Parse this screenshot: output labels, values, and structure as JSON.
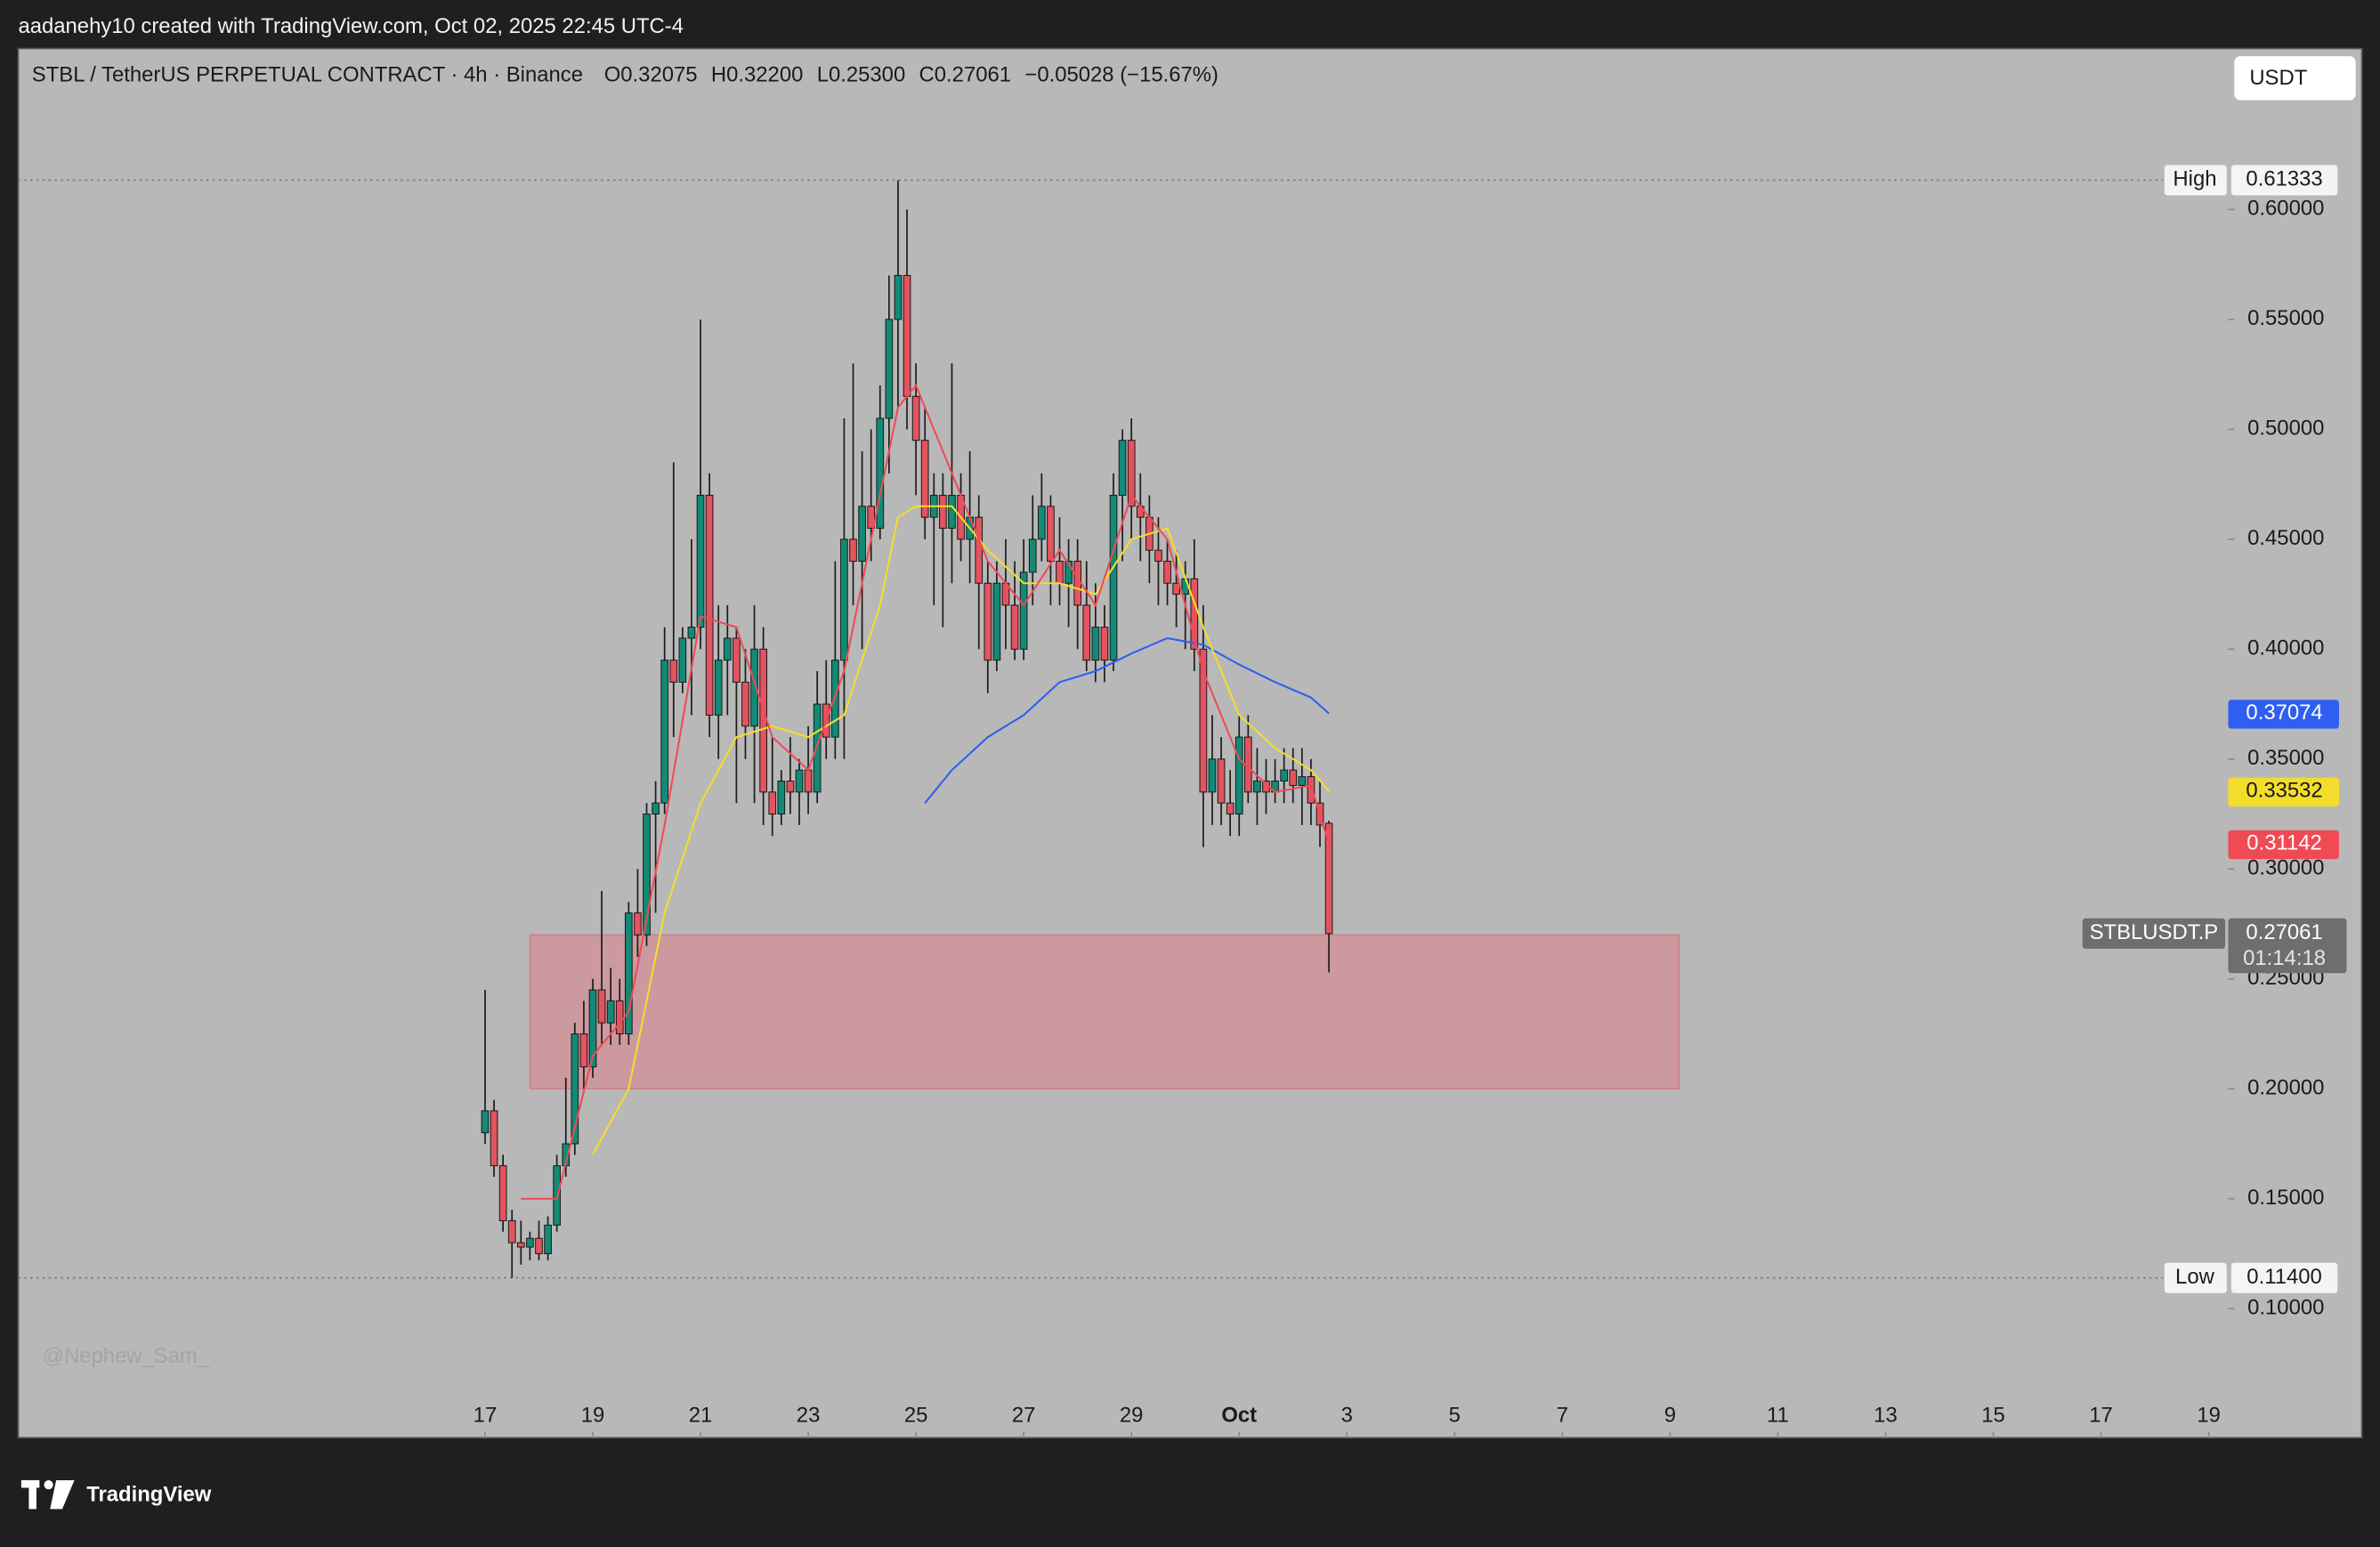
{
  "header": {
    "credit": "aadanehy10 created with TradingView.com, Oct 02, 2025 22:45 UTC-4",
    "currency_button": "USDT",
    "watermark": "@Nephew_Sam_",
    "brand": "TradingView"
  },
  "chart_data": {
    "type": "candlestick",
    "title": "STBL / TetherUS PERPETUAL CONTRACT · 4h · Binance",
    "ohlc_legend": [
      "O0.32075",
      "H0.32200",
      "L0.25300",
      "C0.27061",
      "−0.05028 (−15.67%)"
    ],
    "up_color": "#128a76",
    "down_color": "#e4535f",
    "wick_color": "#1c1c1c",
    "open": [
      0.18,
      0.19,
      0.165,
      0.14,
      0.13,
      0.128,
      0.132,
      0.125,
      0.138,
      0.165,
      0.175,
      0.225,
      0.21,
      0.245,
      0.23,
      0.24,
      0.225,
      0.28,
      0.27,
      0.325,
      0.33,
      0.395,
      0.385,
      0.405,
      0.41,
      0.47,
      0.37,
      0.395,
      0.405,
      0.385,
      0.365,
      0.4,
      0.335,
      0.325,
      0.34,
      0.335,
      0.345,
      0.335,
      0.375,
      0.36,
      0.395,
      0.45,
      0.44,
      0.465,
      0.455,
      0.505,
      0.55,
      0.57,
      0.515,
      0.495,
      0.46,
      0.47,
      0.455,
      0.47,
      0.45,
      0.46,
      0.43,
      0.395,
      0.43,
      0.42,
      0.4,
      0.435,
      0.45,
      0.465,
      0.44,
      0.43,
      0.44,
      0.42,
      0.395,
      0.41,
      0.395,
      0.47,
      0.495,
      0.465,
      0.46,
      0.445,
      0.44,
      0.43,
      0.425,
      0.432,
      0.4,
      0.335,
      0.35,
      0.33,
      0.325,
      0.36,
      0.335,
      0.34,
      0.335,
      0.34,
      0.345,
      0.338,
      0.342,
      0.33,
      0.32075
    ],
    "high": [
      0.245,
      0.195,
      0.17,
      0.145,
      0.14,
      0.135,
      0.14,
      0.142,
      0.17,
      0.205,
      0.23,
      0.24,
      0.25,
      0.29,
      0.255,
      0.25,
      0.285,
      0.3,
      0.33,
      0.34,
      0.41,
      0.485,
      0.41,
      0.45,
      0.55,
      0.48,
      0.42,
      0.42,
      0.41,
      0.4,
      0.42,
      0.41,
      0.36,
      0.345,
      0.36,
      0.35,
      0.365,
      0.39,
      0.395,
      0.44,
      0.505,
      0.53,
      0.49,
      0.5,
      0.52,
      0.57,
      0.61333,
      0.6,
      0.53,
      0.51,
      0.48,
      0.48,
      0.53,
      0.48,
      0.49,
      0.47,
      0.44,
      0.44,
      0.45,
      0.44,
      0.45,
      0.47,
      0.48,
      0.47,
      0.46,
      0.45,
      0.45,
      0.44,
      0.43,
      0.42,
      0.48,
      0.5,
      0.505,
      0.48,
      0.47,
      0.46,
      0.45,
      0.445,
      0.44,
      0.45,
      0.42,
      0.37,
      0.36,
      0.345,
      0.37,
      0.37,
      0.355,
      0.35,
      0.35,
      0.355,
      0.355,
      0.355,
      0.35,
      0.34,
      0.322
    ],
    "low": [
      0.175,
      0.16,
      0.135,
      0.114,
      0.12,
      0.122,
      0.122,
      0.122,
      0.135,
      0.16,
      0.17,
      0.2,
      0.205,
      0.22,
      0.22,
      0.22,
      0.22,
      0.26,
      0.265,
      0.28,
      0.325,
      0.36,
      0.38,
      0.37,
      0.4,
      0.36,
      0.35,
      0.37,
      0.33,
      0.35,
      0.33,
      0.32,
      0.315,
      0.32,
      0.325,
      0.32,
      0.325,
      0.33,
      0.35,
      0.35,
      0.35,
      0.42,
      0.4,
      0.44,
      0.45,
      0.48,
      0.51,
      0.5,
      0.47,
      0.45,
      0.42,
      0.41,
      0.43,
      0.44,
      0.43,
      0.4,
      0.38,
      0.39,
      0.4,
      0.395,
      0.395,
      0.42,
      0.44,
      0.42,
      0.42,
      0.41,
      0.4,
      0.39,
      0.385,
      0.385,
      0.39,
      0.44,
      0.45,
      0.44,
      0.43,
      0.42,
      0.42,
      0.41,
      0.4,
      0.39,
      0.31,
      0.32,
      0.32,
      0.315,
      0.315,
      0.33,
      0.32,
      0.325,
      0.33,
      0.33,
      0.33,
      0.32,
      0.32,
      0.31,
      0.253
    ],
    "close": [
      0.19,
      0.165,
      0.14,
      0.13,
      0.128,
      0.132,
      0.125,
      0.138,
      0.165,
      0.175,
      0.225,
      0.21,
      0.245,
      0.23,
      0.24,
      0.225,
      0.28,
      0.27,
      0.325,
      0.33,
      0.395,
      0.385,
      0.405,
      0.41,
      0.47,
      0.37,
      0.395,
      0.405,
      0.385,
      0.365,
      0.4,
      0.335,
      0.325,
      0.34,
      0.335,
      0.345,
      0.335,
      0.375,
      0.36,
      0.395,
      0.45,
      0.44,
      0.465,
      0.455,
      0.505,
      0.55,
      0.57,
      0.515,
      0.495,
      0.46,
      0.47,
      0.455,
      0.47,
      0.45,
      0.46,
      0.43,
      0.395,
      0.43,
      0.42,
      0.4,
      0.435,
      0.45,
      0.465,
      0.44,
      0.43,
      0.44,
      0.42,
      0.395,
      0.41,
      0.395,
      0.47,
      0.495,
      0.465,
      0.46,
      0.445,
      0.44,
      0.43,
      0.425,
      0.432,
      0.4,
      0.335,
      0.35,
      0.33,
      0.325,
      0.36,
      0.335,
      0.34,
      0.335,
      0.34,
      0.345,
      0.338,
      0.342,
      0.33,
      0.32,
      0.27061
    ],
    "moving_averages": [
      {
        "color": "#2f5ff0",
        "x": [
          49,
          52,
          56,
          60,
          64,
          68,
          72,
          76,
          80,
          84,
          88,
          92,
          94
        ],
        "values": [
          0.33,
          0.345,
          0.36,
          0.37,
          0.385,
          0.39,
          0.398,
          0.405,
          0.402,
          0.393,
          0.385,
          0.378,
          0.37074
        ]
      },
      {
        "color": "#f4dd2a",
        "x": [
          12,
          16,
          20,
          24,
          28,
          32,
          36,
          40,
          44,
          46,
          48,
          52,
          56,
          60,
          64,
          68,
          72,
          76,
          80,
          84,
          88,
          92,
          94
        ],
        "values": [
          0.17,
          0.2,
          0.28,
          0.33,
          0.36,
          0.365,
          0.36,
          0.37,
          0.42,
          0.46,
          0.465,
          0.465,
          0.445,
          0.43,
          0.43,
          0.425,
          0.45,
          0.455,
          0.41,
          0.37,
          0.355,
          0.345,
          0.33532
        ]
      },
      {
        "color": "#f04a55",
        "x": [
          4,
          8,
          12,
          16,
          20,
          24,
          28,
          32,
          36,
          40,
          44,
          46,
          48,
          52,
          56,
          60,
          64,
          68,
          72,
          76,
          80,
          84,
          88,
          92,
          94
        ],
        "values": [
          0.15,
          0.15,
          0.215,
          0.235,
          0.32,
          0.415,
          0.41,
          0.36,
          0.345,
          0.39,
          0.47,
          0.51,
          0.52,
          0.48,
          0.44,
          0.42,
          0.445,
          0.42,
          0.47,
          0.45,
          0.39,
          0.35,
          0.335,
          0.338,
          0.31142
        ]
      }
    ],
    "zones": [
      {
        "x": [
          5,
          133
        ],
        "y": [
          0.2,
          0.27
        ],
        "color": "rgba(228,110,122,0.42)"
      }
    ],
    "high_low": [
      {
        "label": "High",
        "value": 0.61333
      },
      {
        "label": "Low",
        "value": 0.114,
        "value_label": "0.11400"
      }
    ],
    "last_price": {
      "symbol": "STBLUSDT.P",
      "value": 0.27061,
      "countdown": "01:14:18"
    },
    "xlim": [
      -52,
      194
    ],
    "xticks": [
      {
        "value": 0,
        "label": "17"
      },
      {
        "value": 12,
        "label": "19"
      },
      {
        "value": 24,
        "label": "21"
      },
      {
        "value": 36,
        "label": "23"
      },
      {
        "value": 48,
        "label": "25"
      },
      {
        "value": 60,
        "label": "27"
      },
      {
        "value": 72,
        "label": "29"
      },
      {
        "value": 84,
        "label": "Oct"
      },
      {
        "value": 96,
        "label": "3"
      },
      {
        "value": 108,
        "label": "5"
      },
      {
        "value": 120,
        "label": "7"
      },
      {
        "value": 132,
        "label": "9"
      },
      {
        "value": 144,
        "label": "11"
      },
      {
        "value": 156,
        "label": "13"
      },
      {
        "value": 168,
        "label": "15"
      },
      {
        "value": 180,
        "label": "17"
      },
      {
        "value": 192,
        "label": "19"
      }
    ],
    "ylim": [
      0.0413,
      0.6732
    ],
    "yticks": [
      {
        "value": 0.1,
        "label": "0.10000"
      },
      {
        "value": 0.15,
        "label": "0.15000"
      },
      {
        "value": 0.2,
        "label": "0.20000"
      },
      {
        "value": 0.25,
        "label": "0.25000"
      },
      {
        "value": 0.3,
        "label": "0.30000"
      },
      {
        "value": 0.35,
        "label": "0.35000"
      },
      {
        "value": 0.4,
        "label": "0.40000"
      },
      {
        "value": 0.45,
        "label": "0.45000"
      },
      {
        "value": 0.5,
        "label": "0.50000"
      },
      {
        "value": 0.55,
        "label": "0.55000"
      },
      {
        "value": 0.6,
        "label": "0.60000"
      }
    ]
  }
}
